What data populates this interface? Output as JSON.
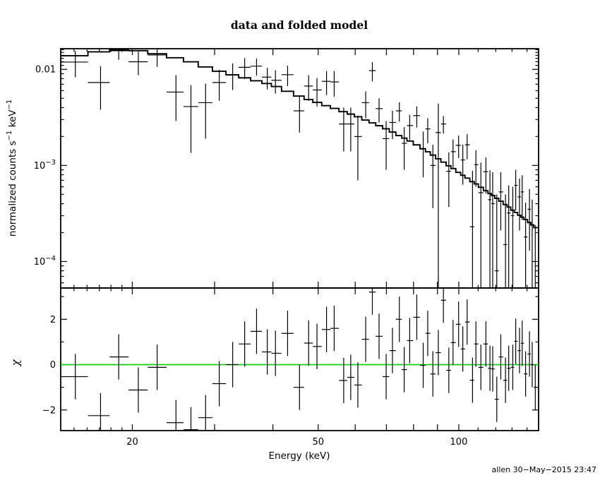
{
  "page": {
    "footer": "allen 30−May−2015 23:47"
  },
  "chart_data": {
    "type": "scatter",
    "layout": "two-panel-shared-x",
    "title": "data and folded model",
    "grid": false,
    "legend": "none",
    "x": {
      "label": "Energy (keV)",
      "scale": "log",
      "lim": [
        14.05,
        148.2
      ],
      "ticks_major": [
        20,
        30,
        40,
        50,
        60,
        70,
        80,
        90,
        100
      ],
      "ticks_minor": [
        15,
        16,
        17,
        18,
        19,
        110,
        120,
        130,
        140
      ],
      "ticks_labeled": [
        {
          "v": 20,
          "label": "20"
        },
        {
          "v": 50,
          "label": "50"
        },
        {
          "v": 100,
          "label": "100"
        }
      ]
    },
    "top_panel": {
      "ylabel": "normalized counts s−1 keV−1",
      "ylabel_segments": [
        {
          "t": "normalized counts s"
        },
        {
          "t": "−1",
          "sup": true
        },
        {
          "t": " keV"
        },
        {
          "t": "−1",
          "sup": true
        }
      ],
      "scale": "log",
      "lim": [
        5.3e-05,
        0.0164
      ],
      "ticks": [
        {
          "v": 0.01,
          "label": [
            {
              "t": "0.01"
            }
          ]
        },
        {
          "v": 0.001,
          "label": [
            {
              "t": "10"
            },
            {
              "t": "−3",
              "sup": true
            }
          ]
        },
        {
          "v": 0.0001,
          "label": [
            {
              "t": "10"
            },
            {
              "t": "−4",
              "sup": true
            }
          ]
        }
      ]
    },
    "bottom_panel": {
      "ylabel": "χ",
      "scale": "linear",
      "lim": [
        -2.91,
        3.38
      ],
      "ticks_major": [
        {
          "v": 2,
          "label": "2"
        },
        {
          "v": 0,
          "label": "0"
        },
        {
          "v": -2,
          "label": "−2"
        }
      ],
      "ticks_minor": [
        3,
        1,
        -1
      ],
      "zero_line": {
        "y": 0,
        "color": "#00CC00"
      }
    },
    "data_points": {
      "description": "binned spectrum: energy bin centers (keV), count rate, 1-sigma error, and fit residuals chi=(data-model)/sigma",
      "e": [
        15.1,
        17.1,
        18.7,
        20.6,
        22.6,
        24.8,
        26.7,
        28.7,
        30.7,
        32.8,
        34.8,
        36.9,
        38.9,
        40.5,
        43.0,
        45.6,
        47.7,
        49.7,
        52.1,
        54.1,
        56.7,
        58.7,
        60.8,
        63.2,
        65.3,
        67.5,
        69.9,
        72.1,
        74.6,
        76.4,
        78.5,
        81.3,
        83.9,
        85.8,
        88.0,
        90.4,
        92.7,
        95.2,
        97.2,
        99.9,
        102.0,
        104.2,
        107.0,
        108.8,
        111.5,
        114.3,
        116.6,
        118.2,
        120.6,
        123.0,
        125.9,
        127.9,
        130.5,
        132.4,
        134.9,
        136.7,
        139.0,
        141.7,
        143.6,
        145.8
      ],
      "rate": [
        0.0119,
        0.0073,
        0.0156,
        0.012,
        0.0141,
        0.0058,
        0.0041,
        0.0045,
        0.0073,
        0.0088,
        0.0105,
        0.0108,
        0.0083,
        0.0077,
        0.0088,
        0.0037,
        0.0067,
        0.0061,
        0.0075,
        0.0074,
        0.0027,
        0.0027,
        0.002,
        0.0045,
        0.0097,
        0.0039,
        0.0019,
        0.0028,
        0.0037,
        0.0017,
        0.0026,
        0.0033,
        0.0015,
        0.0024,
        0.001,
        0.0022,
        0.0027,
        0.00087,
        0.00139,
        0.00162,
        0.00114,
        0.00164,
        0.00023,
        0.00102,
        0.00052,
        0.00086,
        0.00044,
        0.0004,
        8e-05,
        0.00053,
        0.00015,
        0.00032,
        0.0003,
        0.00062,
        0.00047,
        0.00053,
        0.00018,
        0.00035,
        0.00024,
        5e-05
      ],
      "rate_err": [
        0.0036,
        0.0035,
        0.003,
        0.0033,
        0.0035,
        0.0029,
        0.00275,
        0.0026,
        0.0026,
        0.0027,
        0.0026,
        0.0022,
        0.0021,
        0.0021,
        0.0021,
        0.0015,
        0.002,
        0.002,
        0.0021,
        0.0022,
        0.0013,
        0.0013,
        0.0013,
        0.0014,
        0.0022,
        0.0011,
        0.001,
        0.00092,
        0.00084,
        0.0008,
        0.00076,
        0.00082,
        0.00075,
        0.0007,
        0.00064,
        0.0022,
        0.00056,
        0.0005,
        0.00047,
        0.00043,
        0.00051,
        0.00048,
        0.00065,
        0.00042,
        0.00055,
        0.00035,
        0.00045,
        0.00045,
        0.00042,
        0.00032,
        0.00035,
        0.0003,
        0.0003,
        0.00028,
        0.00026,
        0.00026,
        0.00023,
        0.00022,
        0.0002,
        0.00019
      ],
      "chi": [
        -0.53,
        -2.25,
        0.34,
        -1.12,
        -0.12,
        -2.56,
        -2.87,
        -2.34,
        -0.84,
        0.0,
        0.91,
        1.47,
        0.56,
        0.5,
        1.38,
        -1.0,
        0.95,
        0.8,
        1.55,
        1.6,
        -0.7,
        -0.56,
        -0.9,
        1.12,
        3.2,
        1.25,
        -0.53,
        0.62,
        2.0,
        -0.22,
        1.06,
        2.09,
        -0.03,
        1.38,
        -0.41,
        0.53,
        2.84,
        -0.25,
        0.97,
        1.78,
        0.69,
        1.88,
        -0.69,
        0.91,
        -0.12,
        0.91,
        -0.16,
        -0.19,
        -1.53,
        0.34,
        -0.69,
        -0.16,
        -0.12,
        1.03,
        0.62,
        0.94,
        -0.41,
        0.47,
        0.0,
        -1.0
      ],
      "chi_err": 1.0
    },
    "model": {
      "name": "folded model",
      "style": "step-histogram",
      "color": "#000000",
      "breakpoints_e": [
        14.05,
        16.3,
        18.0,
        19.5,
        21.0,
        23.0,
        25.0,
        27.0,
        29.0,
        31.5,
        34.0,
        36.5,
        39.0,
        42.0,
        45.0,
        48.0,
        52.0,
        56.0,
        60.0,
        65.0,
        70.0,
        76.0,
        82.0,
        88.0,
        95.0,
        102.0,
        110.0,
        118.0,
        126.0,
        134.0,
        141.0,
        148.2
      ],
      "breakpoints_rate": [
        0.0131,
        0.0147,
        0.0158,
        0.0161,
        0.0155,
        0.0143,
        0.0131,
        0.0118,
        0.0104,
        0.0092,
        0.0084,
        0.0077,
        0.0071,
        0.0062,
        0.0054,
        0.0048,
        0.0042,
        0.0037,
        0.0033,
        0.0028,
        0.0024,
        0.00195,
        0.0016,
        0.00128,
        0.001,
        0.00079,
        0.00062,
        0.00049,
        0.00039,
        0.00031,
        0.00026,
        0.00021
      ]
    },
    "colors": {
      "foreground": "#000000",
      "background": "#ffffff",
      "zero_line": "#00CC00"
    }
  }
}
